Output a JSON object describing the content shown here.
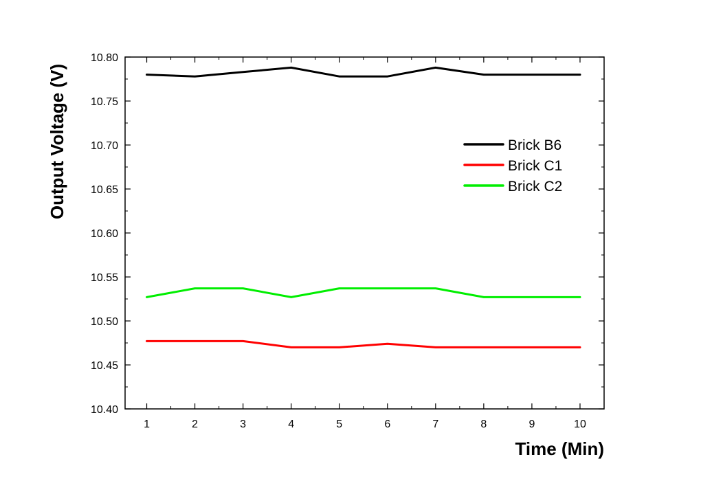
{
  "chart_data": {
    "type": "line",
    "title": "",
    "xlabel": "Time (Min)",
    "ylabel": "Output Voltage (V)",
    "x": [
      1,
      2,
      3,
      4,
      5,
      6,
      7,
      8,
      9,
      10
    ],
    "xlim": [
      0.55,
      10.5
    ],
    "ylim": [
      10.4,
      10.8
    ],
    "x_ticks": [
      1,
      2,
      3,
      4,
      5,
      6,
      7,
      8,
      9,
      10
    ],
    "x_tick_labels": [
      "1",
      "2",
      "3",
      "4",
      "5",
      "6",
      "7",
      "8",
      "9",
      "10"
    ],
    "y_ticks": [
      10.4,
      10.45,
      10.5,
      10.55,
      10.6,
      10.65,
      10.7,
      10.75,
      10.8
    ],
    "y_tick_labels": [
      "10.40",
      "10.45",
      "10.50",
      "10.55",
      "10.60",
      "10.65",
      "10.70",
      "10.75",
      "10.80"
    ],
    "grid": false,
    "legend_position": "upper-right",
    "series": [
      {
        "name": "Brick B6",
        "color": "#000000",
        "values": [
          10.78,
          10.778,
          10.783,
          10.788,
          10.778,
          10.778,
          10.788,
          10.78,
          10.78,
          10.78
        ]
      },
      {
        "name": "Brick C1",
        "color": "#ff0000",
        "values": [
          10.477,
          10.477,
          10.477,
          10.47,
          10.47,
          10.474,
          10.47,
          10.47,
          10.47,
          10.47
        ]
      },
      {
        "name": "Brick C2",
        "color": "#00ee00",
        "values": [
          10.527,
          10.537,
          10.537,
          10.527,
          10.537,
          10.537,
          10.537,
          10.527,
          10.527,
          10.527
        ]
      }
    ]
  }
}
